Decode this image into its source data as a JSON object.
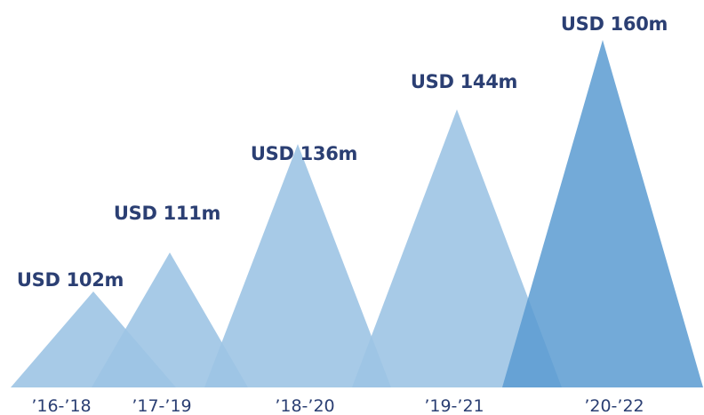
{
  "chart_data": {
    "type": "bar",
    "title": "",
    "xlabel": "",
    "ylabel": "",
    "categories": [
      "’16-’18",
      "’17-’19",
      "’18-’20",
      "’19-’21",
      "’20-’22"
    ],
    "values": [
      102,
      111,
      136,
      144,
      160
    ],
    "value_labels": [
      "USD 102m",
      "USD 111m",
      "USD 136m",
      "USD 144m",
      "USD 160m"
    ],
    "unit": "USD m",
    "ylim": [
      0,
      160
    ],
    "grid": false,
    "legend": "none",
    "shape": "triangle",
    "colors": {
      "bar": "#9dc4e4",
      "highlight": "#5b9bd1",
      "label_text": "#2b3f73",
      "tick_text": "#2b3f73"
    },
    "highlight_index": 4
  }
}
